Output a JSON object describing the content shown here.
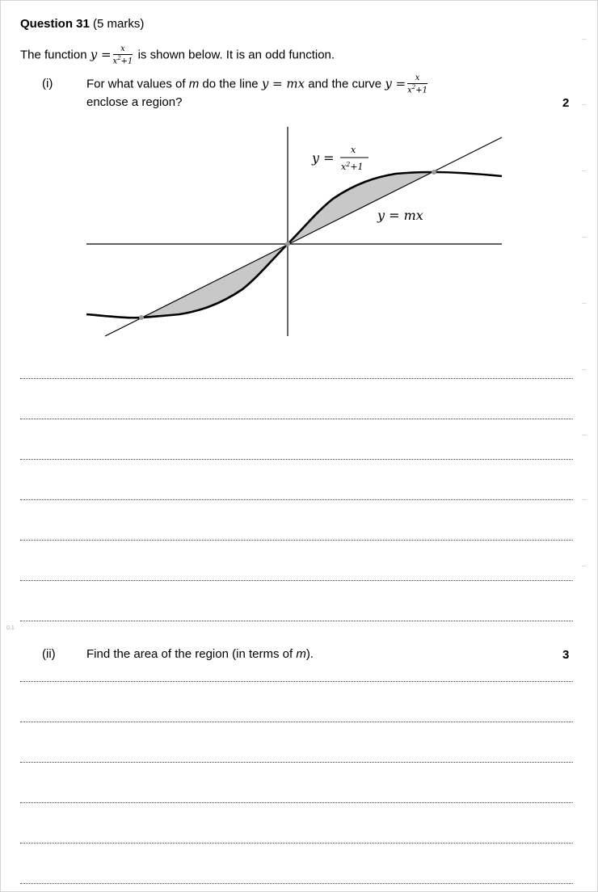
{
  "question": {
    "number_label": "Question 31",
    "marks_label": "(5 marks)"
  },
  "intro": {
    "prefix": "The function",
    "y_eq": "y =",
    "frac_num": "x",
    "frac_den_base": "x",
    "frac_den_exp": "2",
    "frac_den_tail": "+1",
    "suffix": "is shown below. It is an odd function."
  },
  "part_i": {
    "label": "(i)",
    "text_before_m": "For what values of",
    "m_symbol": "m",
    "text_middle": "do the line",
    "line_eq": "y = mx",
    "text_curve": "and the curve",
    "curve_y_eq": "y =",
    "frac_num": "x",
    "frac_den_base": "x",
    "frac_den_exp": "2",
    "frac_den_tail": "+1",
    "text_line2": "enclose a region?",
    "marks": "2"
  },
  "figure": {
    "curve_label_y": "y =",
    "curve_label_num": "x",
    "curve_label_den_base": "x",
    "curve_label_den_exp": "2",
    "curve_label_den_tail": "+1",
    "line_label": "y = mx"
  },
  "part_ii": {
    "label": "(ii)",
    "text_before_m": "Find the area of the region (in terms of",
    "m_symbol": "m",
    "text_after_m": ").",
    "marks": "3"
  },
  "margin_mark": "0.1"
}
